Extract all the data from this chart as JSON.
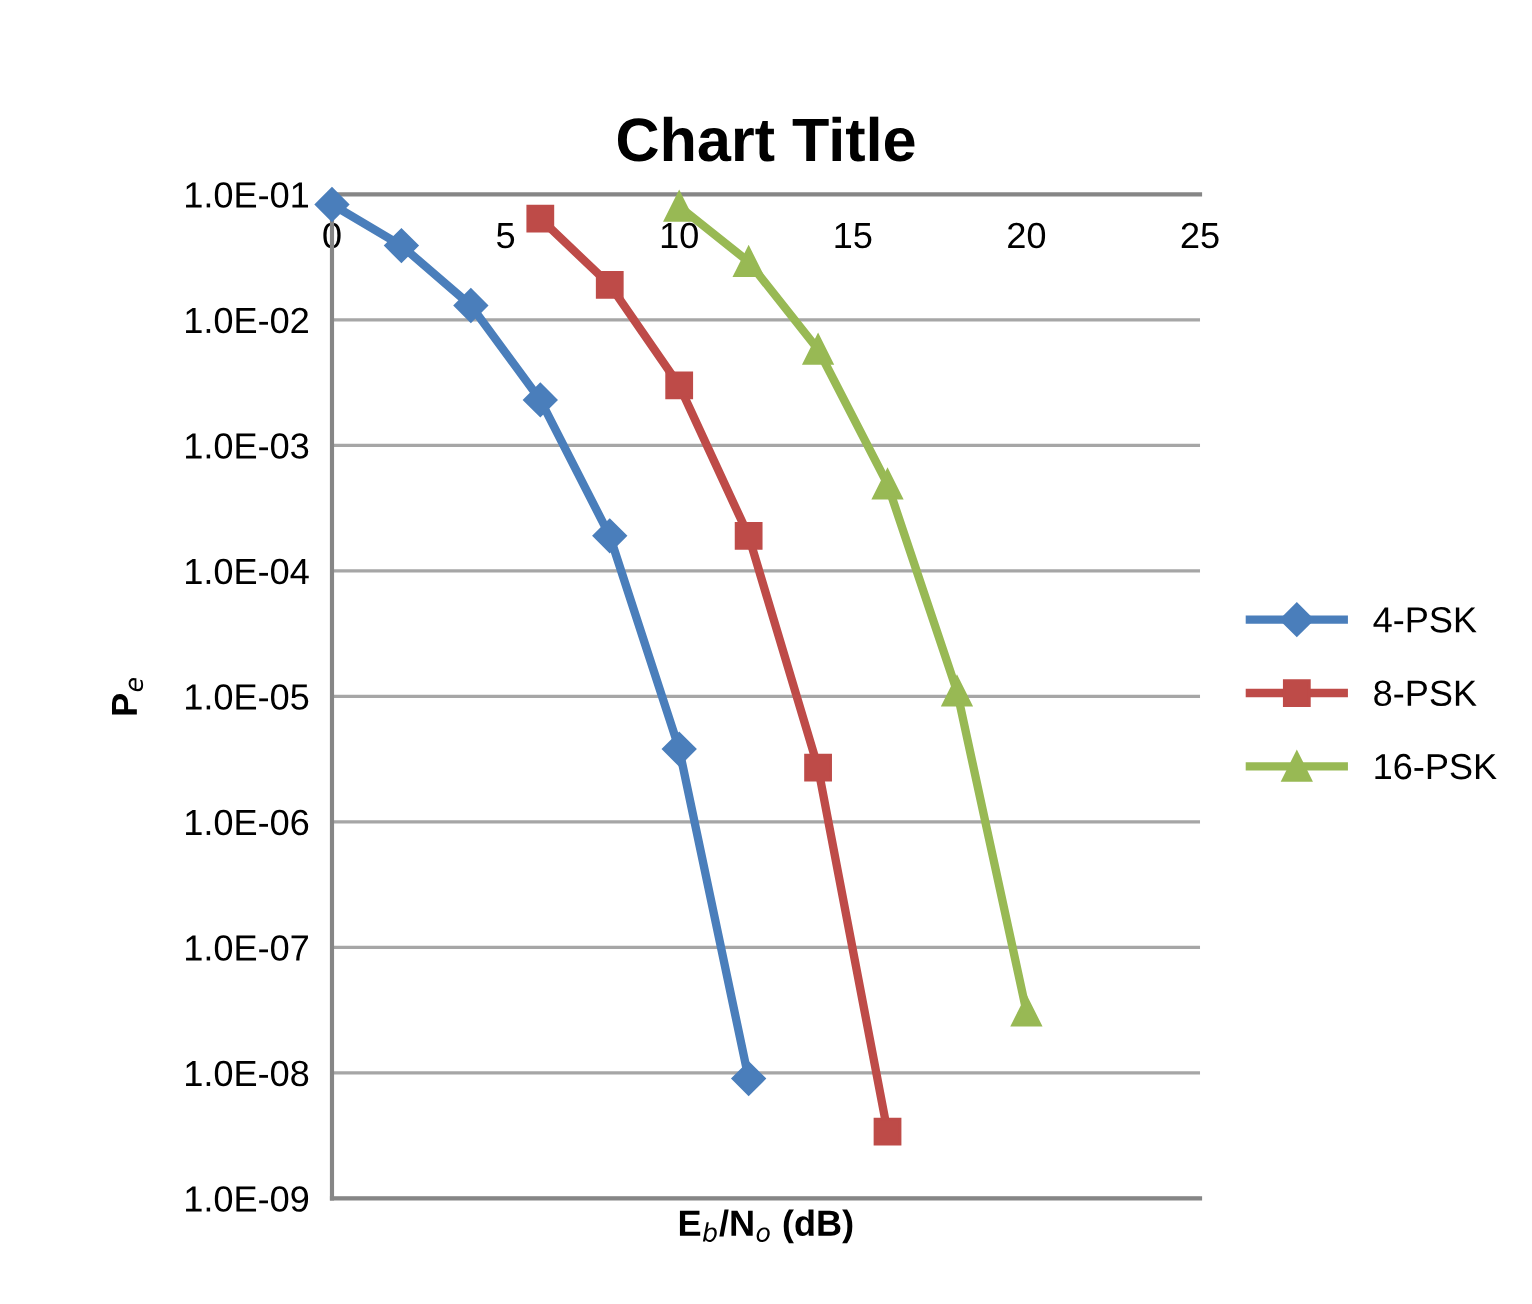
{
  "chart_data": {
    "type": "line",
    "title": "Chart Title",
    "xlabel": "E$_{b}$/N$_{o}$ (dB)",
    "ylabel": "P$_{e}$",
    "log": "y",
    "xlim": [
      0,
      25
    ],
    "xticks": [
      0,
      5,
      10,
      15,
      20,
      25
    ],
    "ylim": [
      1e-09,
      0.1
    ],
    "yticks": [
      {
        "value": 1e-09,
        "label": "1.0E-09"
      },
      {
        "value": 1e-08,
        "label": "1.0E-08"
      },
      {
        "value": 1e-07,
        "label": "1.0E-07"
      },
      {
        "value": 1e-06,
        "label": "1.0E-06"
      },
      {
        "value": 1e-05,
        "label": "1.0E-05"
      },
      {
        "value": 0.0001,
        "label": "1.0E-04"
      },
      {
        "value": 0.001,
        "label": "1.0E-03"
      },
      {
        "value": 0.01,
        "label": "1.0E-02"
      },
      {
        "value": 0.1,
        "label": "1.0E-01"
      }
    ],
    "grid": "y",
    "legend": "right",
    "series": [
      {
        "name": "4-PSK",
        "color": "#4a7ebb",
        "marker": "diamond",
        "x": [
          0,
          2,
          4,
          6,
          8,
          10,
          12
        ],
        "values": [
          0.083,
          0.039,
          0.013,
          0.0023,
          0.00019,
          3.8e-06,
          9e-09
        ]
      },
      {
        "name": "8-PSK",
        "color": "#be4b48",
        "marker": "square",
        "x": [
          6,
          8,
          10,
          12,
          14,
          16
        ],
        "values": [
          0.064,
          0.019,
          0.003,
          0.00019,
          2.7e-06,
          3.4e-09
        ]
      },
      {
        "name": "16-PSK",
        "color": "#98b954",
        "marker": "triangle",
        "x": [
          10,
          12,
          14,
          16,
          18,
          20
        ],
        "values": [
          0.08,
          0.029,
          0.0058,
          0.00049,
          1.1e-05,
          3.1e-08
        ]
      }
    ]
  }
}
